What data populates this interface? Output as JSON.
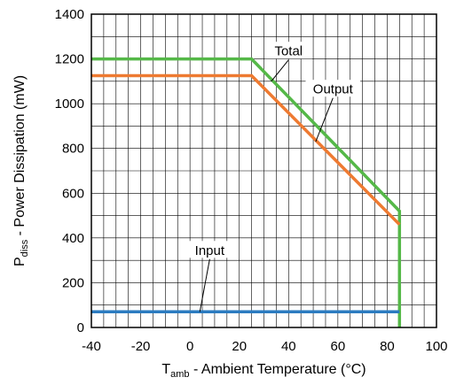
{
  "chart_data": {
    "type": "line",
    "xlim": [
      -40,
      100
    ],
    "ylim": [
      0,
      1400
    ],
    "x_ticks": [
      -40,
      -20,
      0,
      20,
      40,
      60,
      80,
      100
    ],
    "x_tick_labels": [
      "-40",
      "-20",
      "0",
      "20",
      "40",
      "60",
      "80",
      "100"
    ],
    "y_ticks": [
      0,
      200,
      400,
      600,
      800,
      1000,
      1200,
      1400
    ],
    "y_tick_labels": [
      "0",
      "200",
      "400",
      "600",
      "800",
      "1000",
      "1200",
      "1400"
    ],
    "grid": true,
    "xlabel": {
      "main": "T",
      "sub": "amb",
      "rest": " - Ambient Temperature (°C)"
    },
    "ylabel": {
      "main": "P",
      "sub": "diss",
      "rest": " - Power Dissipation (mW)"
    },
    "series": [
      {
        "name": "Total",
        "color": "#55b848",
        "points": [
          [
            -40,
            1200
          ],
          [
            25,
            1200
          ],
          [
            85,
            520
          ],
          [
            85,
            0
          ]
        ]
      },
      {
        "name": "Output",
        "color": "#ee7a31",
        "points": [
          [
            -40,
            1125
          ],
          [
            25,
            1125
          ],
          [
            85,
            460
          ]
        ]
      },
      {
        "name": "Input",
        "color": "#2b7bc0",
        "points": [
          [
            -40,
            70
          ],
          [
            85,
            70
          ]
        ]
      }
    ],
    "annotations": [
      {
        "series": "Total",
        "text": "Total",
        "label_at": [
          40,
          1235
        ],
        "arrow_to": [
          33,
          1100
        ]
      },
      {
        "series": "Output",
        "text": "Output",
        "label_at": [
          58,
          1065
        ],
        "arrow_to": [
          51,
          830
        ]
      },
      {
        "series": "Input",
        "text": "Input",
        "label_at": [
          8,
          345
        ],
        "arrow_to": [
          4,
          70
        ]
      }
    ]
  }
}
